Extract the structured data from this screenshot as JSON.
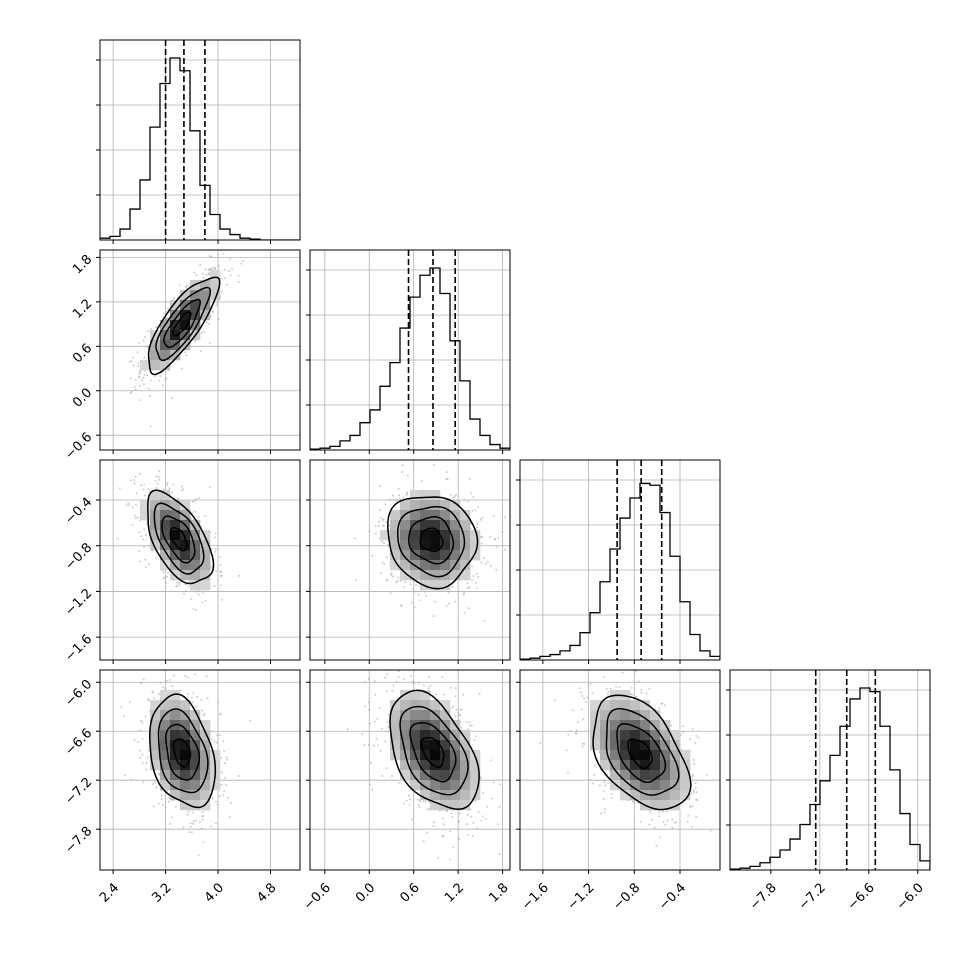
{
  "chart_data": {
    "type": "corner",
    "n_params": 4,
    "params": [
      {
        "ticks": [
          "2.4",
          "3.2",
          "4.0",
          "4.8"
        ],
        "tick_values": [
          2.4,
          3.2,
          4.0,
          4.8
        ],
        "range": [
          2.2,
          5.25
        ],
        "quantiles": [
          3.2,
          3.48,
          3.8
        ]
      },
      {
        "ticks": [
          "−0.6",
          "0.0",
          "0.6",
          "1.2",
          "1.8"
        ],
        "tick_values": [
          -0.6,
          0.0,
          0.6,
          1.2,
          1.8
        ],
        "range": [
          -0.8,
          1.9
        ],
        "quantiles": [
          0.53,
          0.86,
          1.16
        ]
      },
      {
        "ticks": [
          "−1.6",
          "−1.2",
          "−0.8",
          "−0.4"
        ],
        "tick_values": [
          -1.6,
          -1.2,
          -0.8,
          -0.4
        ],
        "range": [
          -1.8,
          -0.05
        ],
        "quantiles": [
          -0.95,
          -0.74,
          -0.56
        ]
      },
      {
        "ticks": [
          "−7.8",
          "−7.2",
          "−6.6",
          "−6.0"
        ],
        "tick_values": [
          -7.8,
          -7.2,
          -6.6,
          -6.0
        ],
        "range": [
          -8.3,
          -5.85
        ],
        "quantiles": [
          -7.25,
          -6.87,
          -6.52
        ]
      }
    ],
    "histograms": [
      [
        0.01,
        0.02,
        0.06,
        0.17,
        0.33,
        0.62,
        0.86,
        1.0,
        0.93,
        0.6,
        0.3,
        0.14,
        0.06,
        0.03,
        0.01,
        0.005,
        0,
        0,
        0,
        0
      ],
      [
        0.005,
        0.01,
        0.02,
        0.05,
        0.08,
        0.15,
        0.22,
        0.35,
        0.48,
        0.67,
        0.84,
        0.96,
        1.0,
        0.86,
        0.6,
        0.38,
        0.17,
        0.08,
        0.03,
        0.01
      ],
      [
        0.005,
        0.01,
        0.02,
        0.03,
        0.05,
        0.08,
        0.15,
        0.26,
        0.43,
        0.61,
        0.78,
        0.89,
        0.97,
        0.96,
        0.81,
        0.57,
        0.32,
        0.14,
        0.05,
        0.02
      ],
      [
        0.005,
        0.01,
        0.02,
        0.04,
        0.07,
        0.11,
        0.17,
        0.25,
        0.36,
        0.49,
        0.63,
        0.79,
        0.94,
        1.0,
        0.98,
        0.79,
        0.55,
        0.31,
        0.14,
        0.05
      ]
    ],
    "pairs": [
      {
        "row": 1,
        "col": 0,
        "mean": [
          3.45,
          0.9
        ],
        "sd": [
          0.27,
          0.32
        ],
        "corr": 0.8
      },
      {
        "row": 2,
        "col": 0,
        "mean": [
          3.4,
          -0.74
        ],
        "sd": [
          0.25,
          0.2
        ],
        "corr": -0.55
      },
      {
        "row": 2,
        "col": 1,
        "mean": [
          0.84,
          -0.75
        ],
        "sd": [
          0.3,
          0.2
        ],
        "corr": -0.1
      },
      {
        "row": 3,
        "col": 0,
        "mean": [
          3.45,
          -6.86
        ],
        "sd": [
          0.25,
          0.34
        ],
        "corr": -0.3
      },
      {
        "row": 3,
        "col": 1,
        "mean": [
          0.86,
          -6.85
        ],
        "sd": [
          0.3,
          0.36
        ],
        "corr": -0.45
      },
      {
        "row": 3,
        "col": 2,
        "mean": [
          -0.75,
          -6.87
        ],
        "sd": [
          0.21,
          0.35
        ],
        "corr": -0.45
      }
    ],
    "contour_levels": [
      0.5,
      1.0,
      1.5,
      2.0
    ],
    "grid": true,
    "colors": {
      "ink": "#000000",
      "grid": "#b0b0b0",
      "points": "#9a9a9a",
      "hist_dark": "#000000"
    }
  }
}
